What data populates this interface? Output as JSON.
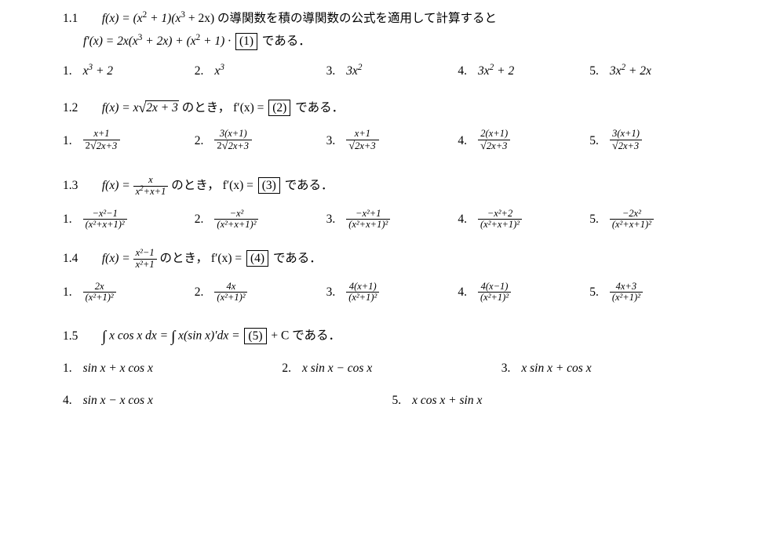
{
  "problems": [
    {
      "num": "1.1",
      "stem1_a": "f(x) = (x",
      "stem1_b": " + 1)(x",
      "stem1_c": " + 2x) の導関数を積の導関数の公式を適用して計算すると",
      "line2_a": "f′(x) = 2x(x",
      "line2_b": " + 2x) + (x",
      "line2_c": " + 1) · ",
      "line2_d": " である．",
      "blank": "(1)",
      "choices": [
        {
          "n": "1.",
          "a": "x",
          "sup": "3",
          "b": " + 2"
        },
        {
          "n": "2.",
          "a": "x",
          "sup": "3",
          "b": ""
        },
        {
          "n": "3.",
          "a": "3x",
          "sup": "2",
          "b": ""
        },
        {
          "n": "4.",
          "a": "3x",
          "sup": "2",
          "b": " + 2"
        },
        {
          "n": "5.",
          "a": "3x",
          "sup": "2",
          "b": " + 2x"
        }
      ]
    },
    {
      "num": "1.2",
      "stem": "f(x) = x",
      "stemRoot": "2x + 3",
      "stemMid": " のとき， f′(x) =  ",
      "blank": "(2)",
      "stemEnd": " である．",
      "choices": [
        {
          "n": "1.",
          "num": "x+1",
          "denA": "2",
          "denRoot": "2x+3"
        },
        {
          "n": "2.",
          "num": "3(x+1)",
          "denA": "2",
          "denRoot": "2x+3"
        },
        {
          "n": "3.",
          "num": "x+1",
          "denA": "",
          "denRoot": "2x+3"
        },
        {
          "n": "4.",
          "num": "2(x+1)",
          "denA": "",
          "denRoot": "2x+3"
        },
        {
          "n": "5.",
          "num": "3(x+1)",
          "denA": "",
          "denRoot": "2x+3"
        }
      ]
    },
    {
      "num": "1.3",
      "stem_a": "f(x) = ",
      "frac_num": "x",
      "frac_den_a": "x",
      "frac_den_b": "+x+1",
      "stem_b": " のとき，  f′(x) =  ",
      "blank": "(3)",
      "stem_c": "  である．",
      "choices": [
        {
          "n": "1.",
          "num": "−x²−1",
          "den": "(x²+x+1)²"
        },
        {
          "n": "2.",
          "num": "−x²",
          "den": "(x²+x+1)²"
        },
        {
          "n": "3.",
          "num": "−x²+1",
          "den": "(x²+x+1)²"
        },
        {
          "n": "4.",
          "num": "−x²+2",
          "den": "(x²+x+1)²"
        },
        {
          "n": "5.",
          "num": "−2x²",
          "den": "(x²+x+1)²"
        }
      ]
    },
    {
      "num": "1.4",
      "stem_a": "f(x) = ",
      "frac_num": "x²−1",
      "frac_den": "x²+1",
      "stem_b": " のとき，  f′(x) =  ",
      "blank": "(4)",
      "stem_c": "  である．",
      "choices": [
        {
          "n": "1.",
          "num": "2x",
          "den": "(x²+1)²"
        },
        {
          "n": "2.",
          "num": "4x",
          "den": "(x²+1)²"
        },
        {
          "n": "3.",
          "num": "4(x+1)",
          "den": "(x²+1)²"
        },
        {
          "n": "4.",
          "num": "4(x−1)",
          "den": "(x²+1)²"
        },
        {
          "n": "5.",
          "num": "4x+3",
          "den": "(x²+1)²"
        }
      ]
    },
    {
      "num": "1.5",
      "stem_a": " x cos x dx  =  ",
      "stem_b": " x(sin x)′dx  =  ",
      "blank": "(5)",
      "stem_c": "  + C である．",
      "row1": [
        {
          "n": "1.",
          "t": "sin x + x cos x"
        },
        {
          "n": "2.",
          "t": "x sin x − cos x"
        },
        {
          "n": "3.",
          "t": "x sin x + cos x"
        }
      ],
      "row2": [
        {
          "n": "4.",
          "t": "sin x − x cos x"
        },
        {
          "n": "5.",
          "t": "x cos x + sin x"
        }
      ]
    }
  ]
}
